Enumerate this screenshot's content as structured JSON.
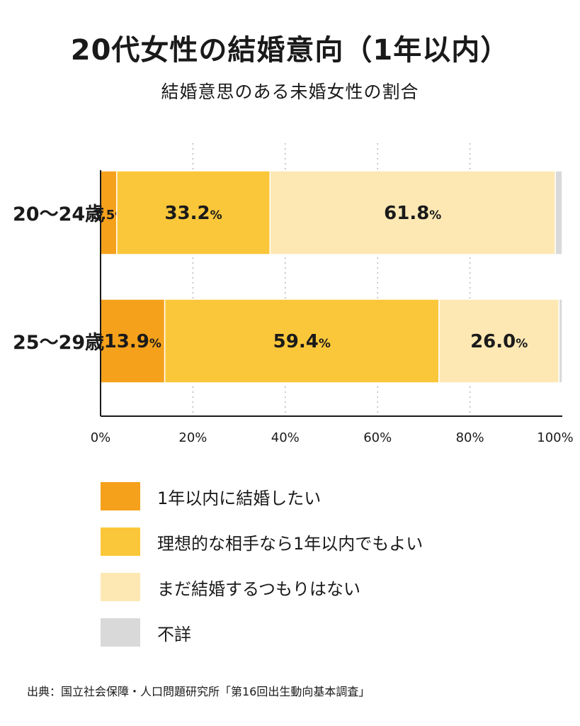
{
  "title": "20代女性の結婚意向（1年以内）",
  "subtitle": "結婚意思のある未婚女性の割合",
  "source": "出典：国立社会保障・人口問題研究所「第16回出生動向基本調査」",
  "colors": {
    "within_1_year": "#F5A11C",
    "ideal_partner": "#FBC73A",
    "not_yet": "#FDE8B4",
    "unknown": "#D9D9D9"
  },
  "legend": [
    {
      "label": "1年以内に結婚したい",
      "color": "#F5A11C"
    },
    {
      "label": "理想的な相手なら1年以内でもよい",
      "color": "#FBC73A"
    },
    {
      "label": "まだ結婚するつもりはない",
      "color": "#FDE8B4"
    },
    {
      "label": "不詳",
      "color": "#D9D9D9"
    }
  ],
  "chart_data": {
    "type": "bar",
    "orientation": "horizontal",
    "stacked": true,
    "categories": [
      "20〜24歳",
      "25〜29歳"
    ],
    "series": [
      {
        "name": "1年以内に結婚したい",
        "values": [
          3.5,
          13.9
        ],
        "labels": [
          "3.5%",
          "13.9%"
        ]
      },
      {
        "name": "理想的な相手なら1年以内でもよい",
        "values": [
          33.2,
          59.4
        ],
        "labels": [
          "33.2%",
          "59.4%"
        ]
      },
      {
        "name": "まだ結婚するつもりはない",
        "values": [
          61.8,
          26.0
        ],
        "labels": [
          "61.8%",
          "26.0%"
        ]
      },
      {
        "name": "不詳",
        "values": [
          1.5,
          0.7
        ],
        "labels": [
          "",
          ""
        ]
      }
    ],
    "xticks": [
      "0%",
      "20%",
      "40%",
      "60%",
      "80%",
      "100%"
    ],
    "xlim": [
      0,
      100
    ],
    "grid": "vertical dotted",
    "legend_position": "bottom"
  }
}
